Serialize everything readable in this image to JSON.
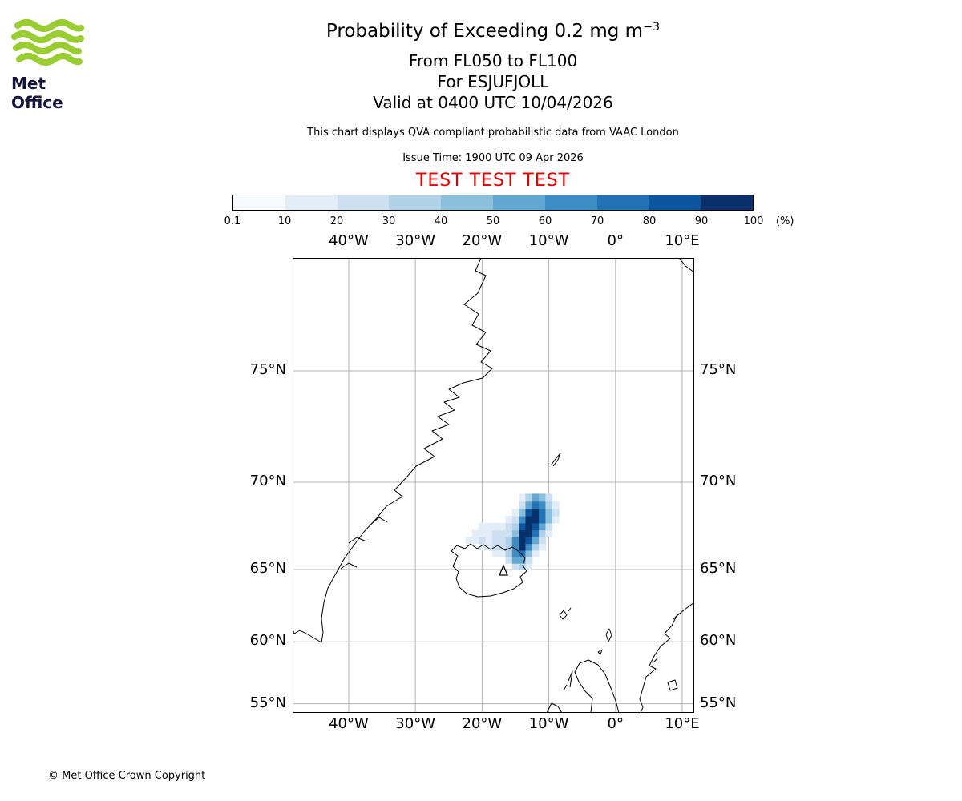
{
  "logo": {
    "brand": "Met Office"
  },
  "header": {
    "title_main": "Probability of Exceeding 0.2 mg m",
    "title_sup": "−3",
    "line2": "From FL050 to FL100",
    "line3": "For ESJUFJOLL",
    "line4": "Valid at 0400 UTC 10/04/2026",
    "note": "This chart displays QVA compliant probabilistic data from VAAC London",
    "issue_time": "Issue Time: 1900 UTC 09 Apr 2026",
    "test_banner": "TEST TEST TEST",
    "test_color": "#e60000"
  },
  "footer": {
    "copyright": "© Met Office Crown Copyright"
  },
  "chart_data": {
    "type": "heatmap",
    "title": "Probability of Exceeding 0.2 mg m−3",
    "subtitle": [
      "From FL050 to FL100",
      "For ESJUFJOLL",
      "Valid at 0400 UTC 10/04/2026"
    ],
    "source_note": "This chart displays QVA compliant probabilistic data from VAAC London",
    "issue_time": "Issue Time: 1900 UTC 09 Apr 2026",
    "projection": "mercator",
    "lon_range": [
      -48.4,
      11.8
    ],
    "lat_range": [
      54.2,
      78.8
    ],
    "grid_on": true,
    "grid_color": "#b5b5b5",
    "lon_ticks": {
      "labels": [
        "40°W",
        "30°W",
        "20°W",
        "10°W",
        "0°",
        "10°E"
      ],
      "values": [
        -40,
        -30,
        -20,
        -10,
        0,
        10
      ]
    },
    "lat_ticks": {
      "labels": [
        "55°N",
        "60°N",
        "65°N",
        "70°N",
        "75°N"
      ],
      "values": [
        55,
        60,
        65,
        70,
        75
      ]
    },
    "colorbar": {
      "unit": "(%)",
      "tick_labels": [
        "0.1",
        "10",
        "20",
        "30",
        "40",
        "50",
        "60",
        "70",
        "80",
        "90",
        "100"
      ],
      "levels": [
        0.1,
        10,
        20,
        30,
        40,
        50,
        60,
        70,
        80,
        90
      ],
      "colors": [
        "#f7fbff",
        "#e2edf8",
        "#cde0f1",
        "#b0d2e8",
        "#8bc0dd",
        "#61a7d2",
        "#3d8dc4",
        "#2272b5",
        "#0b559f",
        "#08306b"
      ]
    },
    "volcano": {
      "name": "ESJUFJOLL",
      "lon": -16.65,
      "lat": 64.27
    },
    "cell_size_deg": [
      1.0,
      0.4
    ],
    "cells": [
      [
        -15,
        65.2,
        25
      ],
      [
        -14,
        65.2,
        30
      ],
      [
        -13,
        65.2,
        10
      ],
      [
        -16,
        65.6,
        20
      ],
      [
        -15,
        65.6,
        50
      ],
      [
        -14,
        65.6,
        55
      ],
      [
        -13,
        65.6,
        25
      ],
      [
        -18,
        66,
        10
      ],
      [
        -17,
        66,
        15
      ],
      [
        -16,
        66,
        30
      ],
      [
        -15,
        66,
        65
      ],
      [
        -14,
        66,
        75
      ],
      [
        -13,
        66,
        45
      ],
      [
        -12,
        66,
        15
      ],
      [
        -20,
        66.4,
        10
      ],
      [
        -19,
        66.4,
        15
      ],
      [
        -18,
        66.4,
        20
      ],
      [
        -17,
        66.4,
        25
      ],
      [
        -16,
        66.4,
        35
      ],
      [
        -15,
        66.4,
        65
      ],
      [
        -14,
        66.4,
        90
      ],
      [
        -13,
        66.4,
        65
      ],
      [
        -12,
        66.4,
        30
      ],
      [
        -11,
        66.4,
        10
      ],
      [
        -22,
        66.8,
        10
      ],
      [
        -21,
        66.8,
        15
      ],
      [
        -20,
        66.8,
        20
      ],
      [
        -19,
        66.8,
        15
      ],
      [
        -18,
        66.8,
        25
      ],
      [
        -17,
        66.8,
        25
      ],
      [
        -16,
        66.8,
        30
      ],
      [
        -15,
        66.8,
        60
      ],
      [
        -14,
        66.8,
        95
      ],
      [
        -13,
        66.8,
        85
      ],
      [
        -12,
        66.8,
        50
      ],
      [
        -11,
        66.8,
        20
      ],
      [
        -21,
        67.2,
        10
      ],
      [
        -20,
        67.2,
        15
      ],
      [
        -19,
        67.2,
        15
      ],
      [
        -18,
        67.2,
        20
      ],
      [
        -17,
        67.2,
        20
      ],
      [
        -16,
        67.2,
        25
      ],
      [
        -15,
        67.2,
        45
      ],
      [
        -14,
        67.2,
        90
      ],
      [
        -13,
        67.2,
        95
      ],
      [
        -12,
        67.2,
        70
      ],
      [
        -11,
        67.2,
        35
      ],
      [
        -10,
        67.2,
        10
      ],
      [
        -20,
        67.6,
        10
      ],
      [
        -19,
        67.6,
        10
      ],
      [
        -18,
        67.6,
        10
      ],
      [
        -17,
        67.6,
        15
      ],
      [
        -16,
        67.6,
        20
      ],
      [
        -15,
        67.6,
        35
      ],
      [
        -14,
        67.6,
        80
      ],
      [
        -13,
        67.6,
        95
      ],
      [
        -12,
        67.6,
        85
      ],
      [
        -11,
        67.6,
        55
      ],
      [
        -10,
        67.6,
        25
      ],
      [
        -16,
        68,
        10
      ],
      [
        -15,
        68,
        25
      ],
      [
        -14,
        68,
        60
      ],
      [
        -13,
        68,
        95
      ],
      [
        -12,
        68,
        90
      ],
      [
        -11,
        68,
        70
      ],
      [
        -10,
        68,
        40
      ],
      [
        -9,
        68,
        15
      ],
      [
        -15,
        68.4,
        15
      ],
      [
        -14,
        68.4,
        45
      ],
      [
        -13,
        68.4,
        80
      ],
      [
        -12,
        68.4,
        90
      ],
      [
        -11,
        68.4,
        75
      ],
      [
        -10,
        68.4,
        45
      ],
      [
        -9,
        68.4,
        20
      ],
      [
        -14,
        68.8,
        25
      ],
      [
        -13,
        68.8,
        55
      ],
      [
        -12,
        68.8,
        70
      ],
      [
        -11,
        68.8,
        60
      ],
      [
        -10,
        68.8,
        35
      ],
      [
        -9,
        68.8,
        15
      ],
      [
        -14,
        69.2,
        15
      ],
      [
        -13,
        69.2,
        35
      ],
      [
        -12,
        69.2,
        50
      ],
      [
        -11,
        69.2,
        40
      ],
      [
        -10,
        69.2,
        20
      ]
    ]
  }
}
